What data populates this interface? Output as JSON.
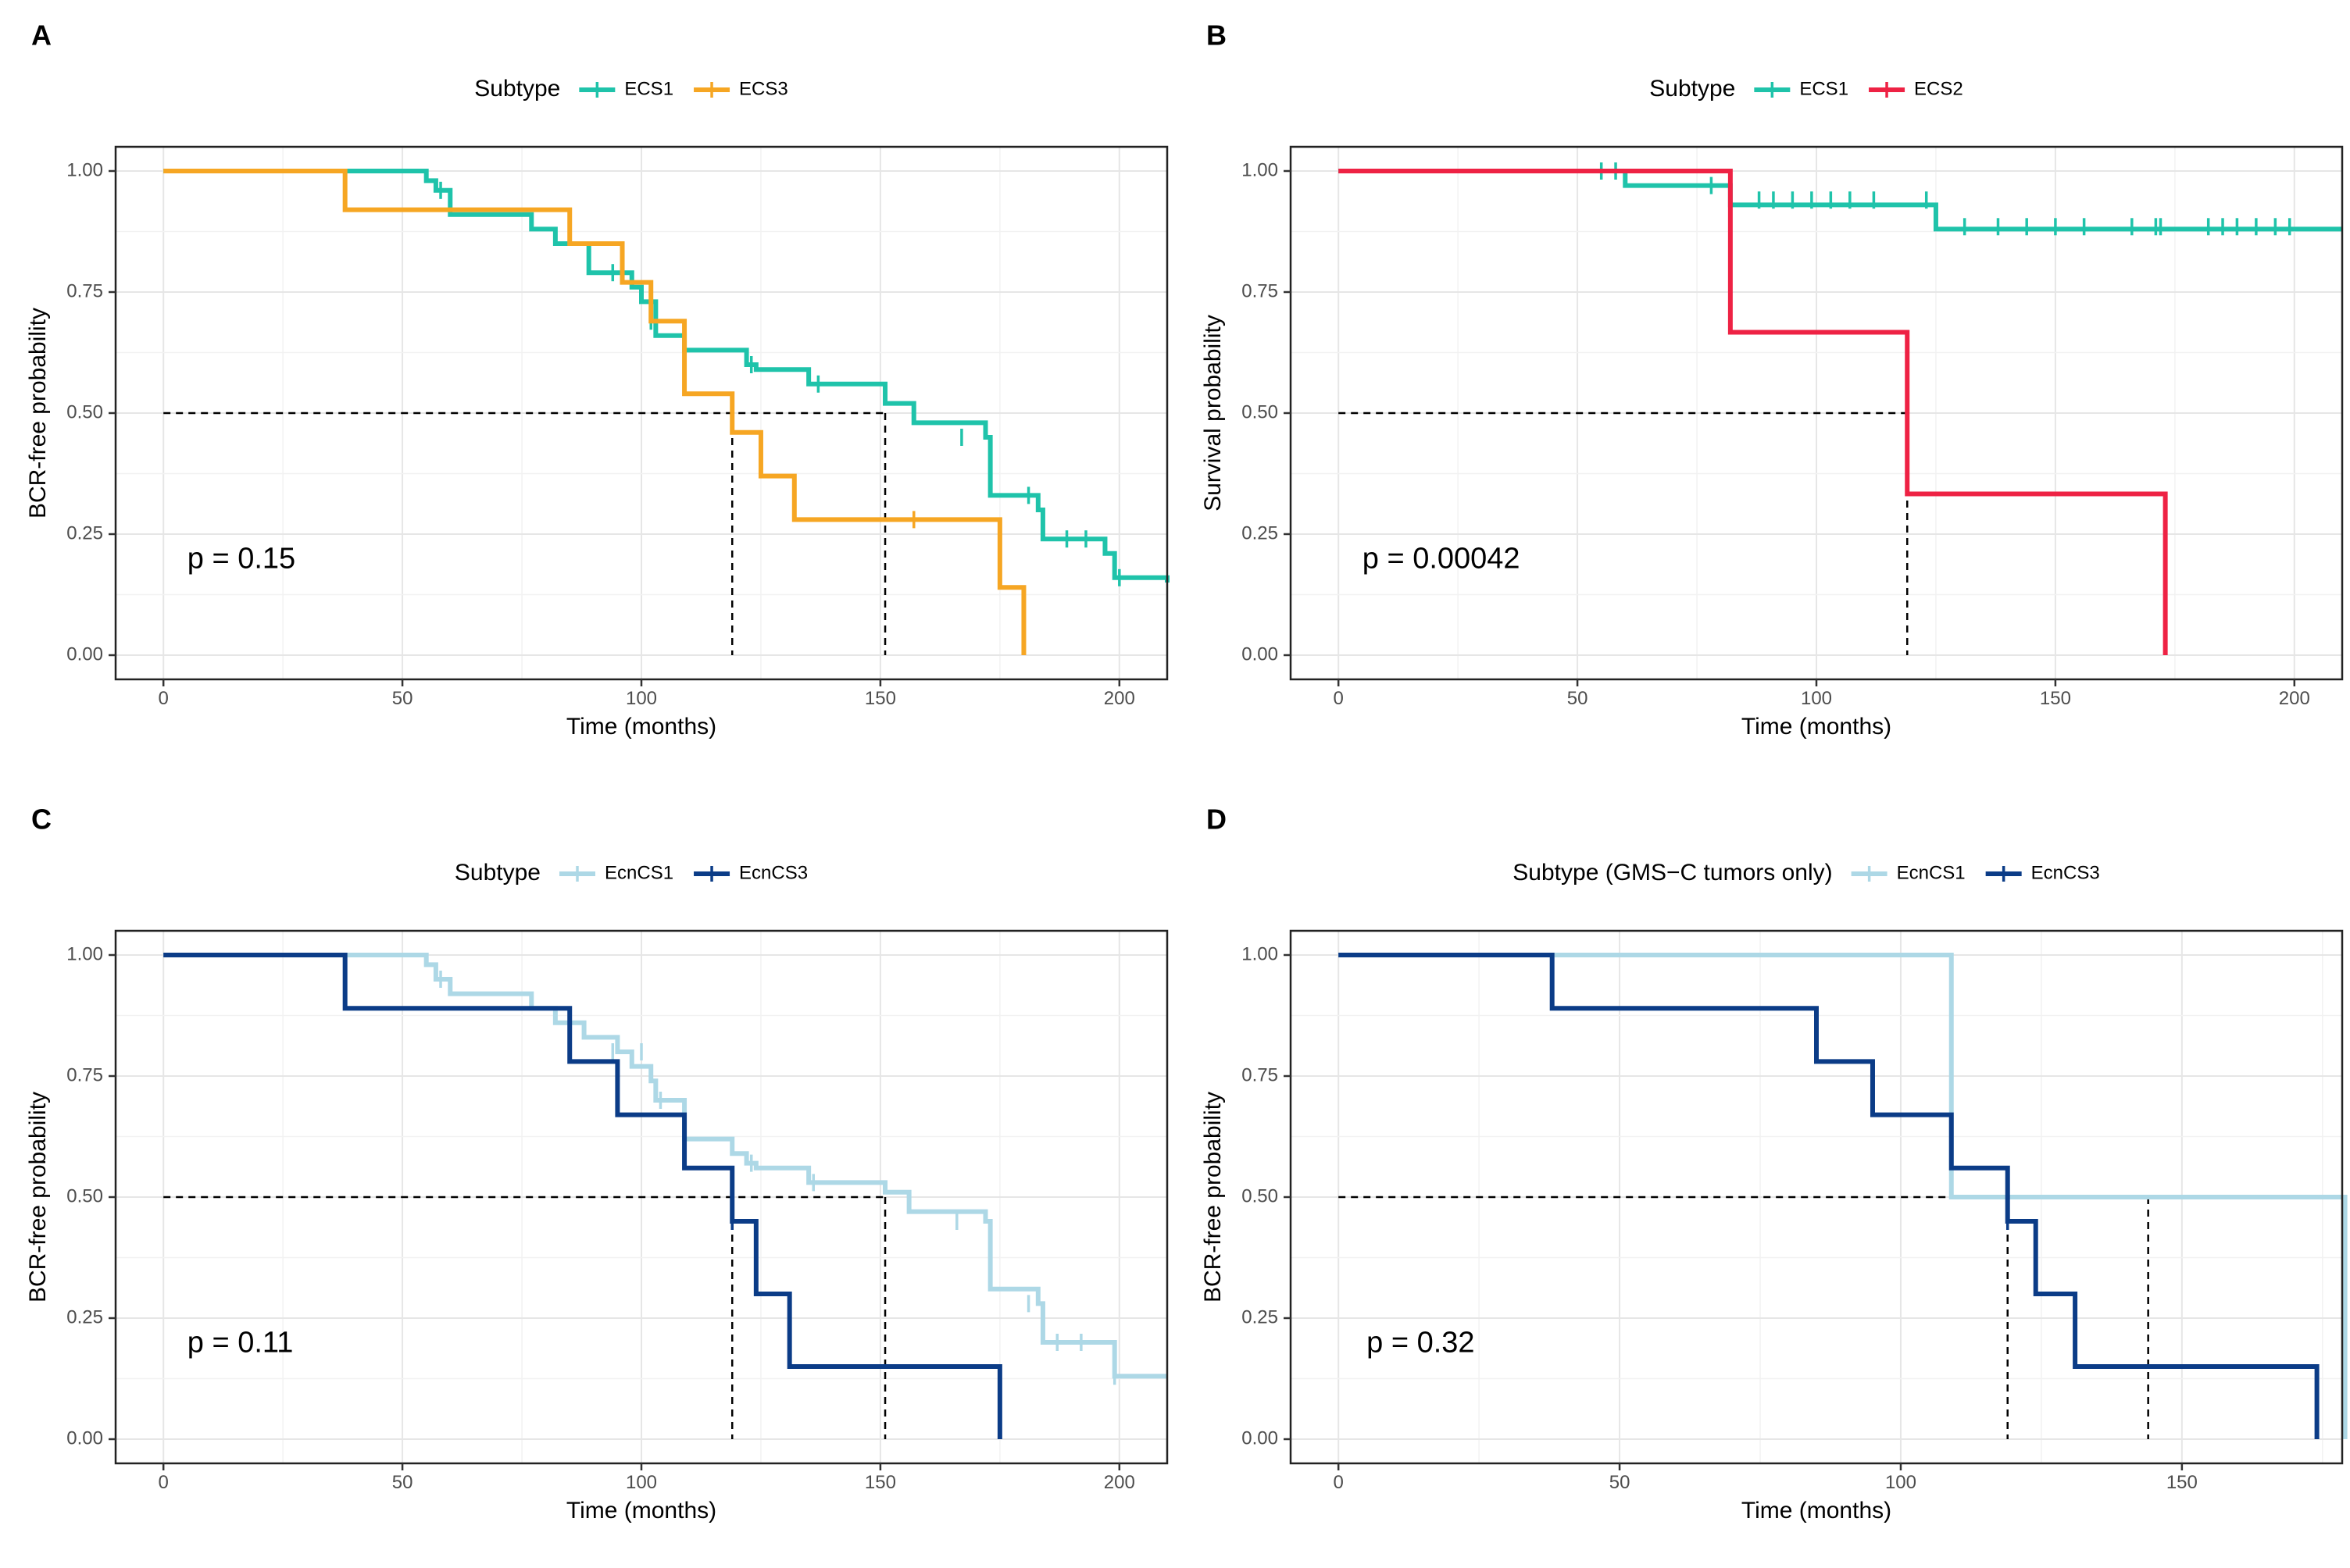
{
  "chart_data": [
    {
      "panel_label": "A",
      "type": "line",
      "subtype": "kaplan-meier",
      "title": "",
      "xlabel": "Time (months)",
      "ylabel": "BCR-free probability",
      "xlim": [
        -10,
        210
      ],
      "ylim": [
        -0.05,
        1.05
      ],
      "xticks": [
        "0",
        "50",
        "100",
        "150",
        "200"
      ],
      "yticks": [
        "0.00",
        "0.25",
        "0.50",
        "0.75",
        "1.00"
      ],
      "grid": true,
      "legend_title": "Subtype",
      "legend_position": "top",
      "pvalue": "p = 0.15",
      "median_lines": {
        "y": 0.5,
        "x": [
          119,
          151
        ]
      },
      "series": [
        {
          "name": "ECS1",
          "color": "#1fc3aa",
          "x": [
            0,
            55,
            57,
            60,
            77,
            82,
            89,
            95,
            98,
            100,
            103,
            109,
            122,
            124,
            135,
            151,
            157,
            172,
            173,
            183,
            184,
            197,
            199,
            210
          ],
          "y": [
            1.0,
            0.98,
            0.96,
            0.91,
            0.88,
            0.85,
            0.79,
            0.79,
            0.76,
            0.73,
            0.66,
            0.63,
            0.6,
            0.59,
            0.56,
            0.52,
            0.48,
            0.45,
            0.33,
            0.3,
            0.24,
            0.21,
            0.16,
            0.15
          ],
          "censor_x": [
            58,
            94,
            102,
            123,
            137,
            167,
            181,
            189,
            193,
            200
          ],
          "censor_y": [
            0.96,
            0.79,
            0.69,
            0.6,
            0.56,
            0.45,
            0.33,
            0.24,
            0.24,
            0.16
          ]
        },
        {
          "name": "ECS3",
          "color": "#f6a623",
          "x": [
            0,
            38,
            85,
            96,
            102,
            109,
            119,
            125,
            132,
            153,
            175,
            180
          ],
          "y": [
            1.0,
            0.92,
            0.85,
            0.77,
            0.69,
            0.54,
            0.46,
            0.37,
            0.28,
            0.28,
            0.14,
            0.0
          ],
          "censor_x": [
            157
          ],
          "censor_y": [
            0.28
          ]
        }
      ]
    },
    {
      "panel_label": "B",
      "type": "line",
      "subtype": "kaplan-meier",
      "title": "",
      "xlabel": "Time (months)",
      "ylabel": "Survival probability",
      "xlim": [
        -10,
        210
      ],
      "ylim": [
        -0.05,
        1.05
      ],
      "xticks": [
        "0",
        "50",
        "100",
        "150",
        "200"
      ],
      "yticks": [
        "0.00",
        "0.25",
        "0.50",
        "0.75",
        "1.00"
      ],
      "grid": true,
      "legend_title": "Subtype",
      "legend_position": "top",
      "pvalue": "p = 0.00042",
      "median_lines": {
        "y": 0.5,
        "x": [
          119
        ]
      },
      "series": [
        {
          "name": "ECS1",
          "color": "#1fc3aa",
          "x": [
            0,
            55,
            60,
            80,
            82,
            123,
            125,
            210
          ],
          "y": [
            1.0,
            1.0,
            0.97,
            0.97,
            0.93,
            0.93,
            0.88,
            0.88
          ],
          "censor_x": [
            55,
            58,
            78,
            88,
            91,
            95,
            99,
            103,
            107,
            112,
            123,
            131,
            138,
            144,
            150,
            156,
            166,
            171,
            172,
            182,
            185,
            188,
            192,
            196,
            199
          ],
          "censor_y": [
            1.0,
            1.0,
            0.97,
            0.94,
            0.94,
            0.94,
            0.94,
            0.94,
            0.94,
            0.94,
            0.94,
            0.885,
            0.885,
            0.885,
            0.885,
            0.885,
            0.885,
            0.885,
            0.885,
            0.885,
            0.885,
            0.885,
            0.885,
            0.885,
            0.885
          ]
        },
        {
          "name": "ECS2",
          "color": "#ee2244",
          "x": [
            0,
            82,
            119,
            173
          ],
          "y": [
            1.0,
            0.667,
            0.333,
            0.0
          ],
          "censor_x": [],
          "censor_y": []
        }
      ]
    },
    {
      "panel_label": "C",
      "type": "line",
      "subtype": "kaplan-meier",
      "title": "",
      "xlabel": "Time (months)",
      "ylabel": "BCR-free probability",
      "xlim": [
        -10,
        210
      ],
      "ylim": [
        -0.05,
        1.05
      ],
      "xticks": [
        "0",
        "50",
        "100",
        "150",
        "200"
      ],
      "yticks": [
        "0.00",
        "0.25",
        "0.50",
        "0.75",
        "1.00"
      ],
      "grid": true,
      "legend_title": "Subtype",
      "legend_position": "top",
      "pvalue": "p = 0.11",
      "median_lines": {
        "y": 0.5,
        "x": [
          119,
          151
        ]
      },
      "series": [
        {
          "name": "EcnCS1",
          "color": "#add8e6",
          "x": [
            0,
            55,
            57,
            60,
            77,
            82,
            88,
            95,
            98,
            102,
            103,
            109,
            119,
            122,
            124,
            135,
            151,
            156,
            172,
            173,
            183,
            184,
            197,
            199,
            210
          ],
          "y": [
            1.0,
            0.98,
            0.95,
            0.92,
            0.89,
            0.86,
            0.83,
            0.8,
            0.77,
            0.74,
            0.7,
            0.62,
            0.59,
            0.57,
            0.56,
            0.53,
            0.51,
            0.47,
            0.45,
            0.31,
            0.28,
            0.2,
            0.2,
            0.13,
            0.13
          ],
          "censor_x": [
            58,
            94,
            100,
            104,
            123,
            136,
            166,
            181,
            187,
            192,
            199
          ],
          "censor_y": [
            0.95,
            0.8,
            0.8,
            0.7,
            0.57,
            0.53,
            0.45,
            0.28,
            0.2,
            0.2,
            0.13
          ]
        },
        {
          "name": "EcnCS3",
          "color": "#0b3c87",
          "x": [
            0,
            38,
            85,
            95,
            109,
            119,
            124,
            131,
            175
          ],
          "y": [
            1.0,
            0.89,
            0.78,
            0.67,
            0.56,
            0.45,
            0.3,
            0.15,
            0.0
          ],
          "censor_x": [
            119
          ],
          "censor_y": [
            0.45
          ]
        }
      ]
    },
    {
      "panel_label": "D",
      "type": "line",
      "subtype": "kaplan-meier",
      "title": "",
      "xlabel": "Time (months)",
      "ylabel": "BCR-free probability",
      "xlim": [
        -8.5,
        178.5
      ],
      "ylim": [
        -0.05,
        1.05
      ],
      "xticks": [
        "0",
        "50",
        "100",
        "150"
      ],
      "yticks": [
        "0.00",
        "0.25",
        "0.50",
        "0.75",
        "1.00"
      ],
      "grid": true,
      "legend_title": "Subtype (GMS−C tumors only)",
      "legend_position": "top",
      "pvalue": "p = 0.32",
      "median_lines": {
        "y": 0.5,
        "x": [
          119,
          144
        ]
      },
      "series": [
        {
          "name": "EcnCS1",
          "color": "#add8e6",
          "x": [
            0,
            109,
            179
          ],
          "y": [
            1.0,
            0.5,
            0.0
          ],
          "censor_x": [],
          "censor_y": []
        },
        {
          "name": "EcnCS3",
          "color": "#0b3c87",
          "x": [
            0,
            38,
            85,
            95,
            109,
            119,
            124,
            131,
            174
          ],
          "y": [
            1.0,
            0.89,
            0.78,
            0.67,
            0.56,
            0.45,
            0.3,
            0.15,
            0.0
          ],
          "censor_x": [
            119
          ],
          "censor_y": [
            0.45
          ]
        }
      ]
    }
  ]
}
